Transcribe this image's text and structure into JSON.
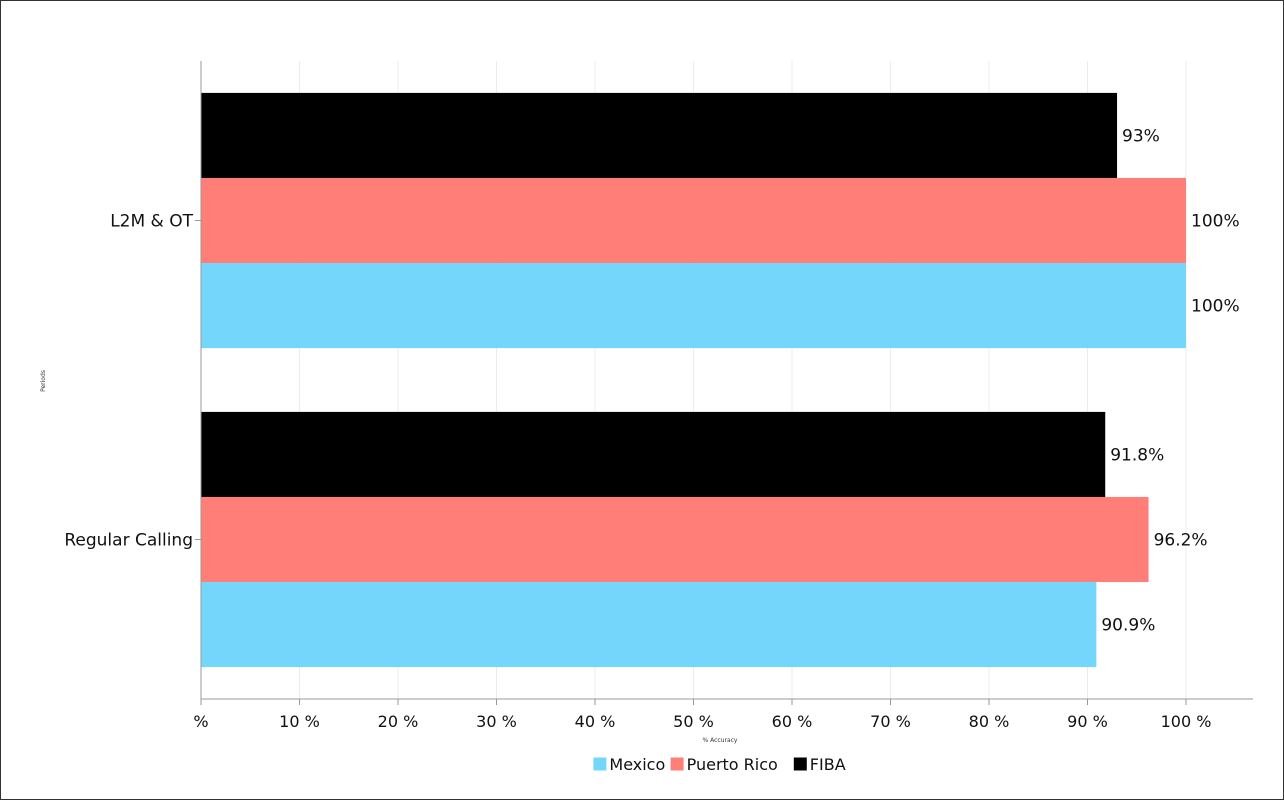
{
  "chart_data": {
    "type": "bar",
    "orientation": "horizontal",
    "categories": [
      "L2M & OT",
      "Regular Calling"
    ],
    "series": [
      {
        "name": "FIBA",
        "color": "#000000",
        "values": [
          93,
          91.8
        ],
        "labels": [
          "93%",
          "91.8%"
        ]
      },
      {
        "name": "Puerto Rico",
        "color": "#ff7f78",
        "values": [
          100,
          96.2
        ],
        "labels": [
          "100%",
          "96.2%"
        ]
      },
      {
        "name": "Mexico",
        "color": "#75d6fc",
        "values": [
          100,
          90.9
        ],
        "labels": [
          "100%",
          "90.9%"
        ]
      }
    ],
    "legend_order": [
      "Mexico",
      "Puerto Rico",
      "FIBA"
    ],
    "xlabel": "% Accuracy",
    "ylabel": "Periods",
    "xlim": [
      0,
      100
    ],
    "x_ticks": [
      0,
      10,
      20,
      30,
      40,
      50,
      60,
      70,
      80,
      90,
      100
    ],
    "x_tick_labels": [
      "%",
      "10 %",
      "20 %",
      "30 %",
      "40 %",
      "50 %",
      "60 %",
      "70 %",
      "80 %",
      "90 %",
      "100 %"
    ],
    "grid": true,
    "legend_position": "bottom"
  }
}
